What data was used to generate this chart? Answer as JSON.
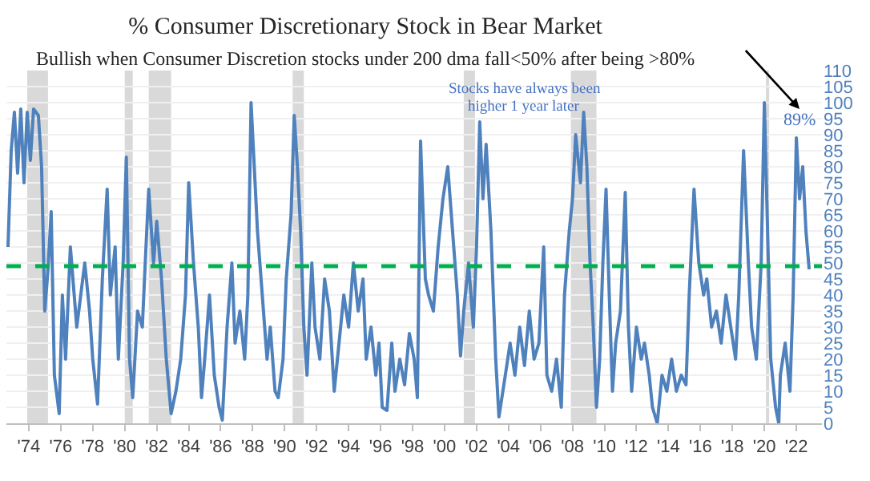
{
  "chart_data": {
    "type": "line",
    "title": "% Consumer Discretionary Stock in Bear Market",
    "subtitle": "Bullish when Consumer Discretion stocks under 200 dma fall<50% after being >80%",
    "annotations": [
      "Stocks have always been",
      "higher 1 year later",
      {
        "text": "89%",
        "x": 2022.2,
        "y": 89
      }
    ],
    "x": [
      1972.7,
      1972.9,
      1973.1,
      1973.3,
      1973.5,
      1973.7,
      1973.9,
      1974.1,
      1974.3,
      1974.6,
      1974.8,
      1975.0,
      1975.2,
      1975.4,
      1975.6,
      1975.9,
      1976.1,
      1976.3,
      1976.6,
      1977.0,
      1977.5,
      1977.8,
      1978.0,
      1978.3,
      1978.6,
      1978.9,
      1979.1,
      1979.4,
      1979.6,
      1979.9,
      1980.1,
      1980.3,
      1980.5,
      1980.8,
      1981.1,
      1981.3,
      1981.5,
      1981.8,
      1982.0,
      1982.3,
      1982.6,
      1982.9,
      1983.2,
      1983.5,
      1983.8,
      1984.0,
      1984.3,
      1984.6,
      1984.8,
      1985.0,
      1985.3,
      1985.6,
      1985.9,
      1986.1,
      1986.4,
      1986.7,
      1986.9,
      1987.2,
      1987.5,
      1987.7,
      1987.9,
      1988.1,
      1988.3,
      1988.6,
      1988.9,
      1989.1,
      1989.4,
      1989.6,
      1989.9,
      1990.1,
      1990.4,
      1990.6,
      1990.8,
      1991.0,
      1991.2,
      1991.4,
      1991.7,
      1991.9,
      1992.2,
      1992.5,
      1992.8,
      1993.1,
      1993.4,
      1993.7,
      1994.0,
      1994.3,
      1994.6,
      1994.9,
      1995.1,
      1995.4,
      1995.7,
      1995.9,
      1996.1,
      1996.4,
      1996.7,
      1996.9,
      1997.2,
      1997.5,
      1997.8,
      1998.1,
      1998.3,
      1998.5,
      1998.8,
      1999.0,
      1999.3,
      1999.6,
      1999.9,
      2000.2,
      2000.5,
      2000.8,
      2001.0,
      2001.2,
      2001.5,
      2001.8,
      2002.0,
      2002.2,
      2002.4,
      2002.6,
      2002.9,
      2003.2,
      2003.4,
      2003.8,
      2004.1,
      2004.4,
      2004.7,
      2005.0,
      2005.3,
      2005.6,
      2005.9,
      2006.2,
      2006.4,
      2006.7,
      2007.0,
      2007.3,
      2007.5,
      2007.8,
      2008.0,
      2008.2,
      2008.5,
      2008.7,
      2008.9,
      2009.1,
      2009.3,
      2009.5,
      2009.7,
      2009.9,
      2010.1,
      2010.3,
      2010.5,
      2010.7,
      2011.0,
      2011.3,
      2011.5,
      2011.7,
      2012.0,
      2012.3,
      2012.5,
      2012.8,
      2013.0,
      2013.3,
      2013.6,
      2013.9,
      2014.2,
      2014.5,
      2014.8,
      2015.1,
      2015.3,
      2015.6,
      2015.9,
      2016.2,
      2016.4,
      2016.7,
      2017.0,
      2017.3,
      2017.6,
      2017.9,
      2018.2,
      2018.4,
      2018.7,
      2019.0,
      2019.2,
      2019.5,
      2019.8,
      2020.0,
      2020.2,
      2020.4,
      2020.7,
      2020.9,
      2021.0,
      2021.3,
      2021.6,
      2021.8,
      2022.0,
      2022.2,
      2022.4,
      2022.6,
      2022.8
    ],
    "series": [
      {
        "color": "#4f81bd",
        "values": [
          55,
          85,
          97,
          78,
          98,
          75,
          97,
          82,
          98,
          96,
          80,
          35,
          48,
          66,
          15,
          3,
          40,
          20,
          55,
          30,
          50,
          35,
          20,
          6,
          45,
          73,
          40,
          55,
          20,
          50,
          83,
          20,
          8,
          35,
          30,
          52,
          73,
          50,
          63,
          45,
          20,
          3,
          10,
          20,
          40,
          75,
          50,
          30,
          8,
          20,
          40,
          15,
          5,
          1,
          30,
          50,
          25,
          35,
          20,
          40,
          100,
          80,
          60,
          40,
          20,
          30,
          10,
          8,
          20,
          45,
          65,
          96,
          80,
          60,
          30,
          15,
          50,
          30,
          20,
          45,
          35,
          10,
          25,
          40,
          30,
          50,
          35,
          45,
          20,
          30,
          15,
          25,
          5,
          4,
          25,
          10,
          20,
          12,
          28,
          20,
          8,
          88,
          45,
          40,
          35,
          55,
          70,
          80,
          60,
          40,
          21,
          35,
          50,
          30,
          55,
          94,
          70,
          87,
          60,
          20,
          2,
          15,
          25,
          15,
          30,
          18,
          35,
          20,
          25,
          55,
          15,
          10,
          20,
          5,
          40,
          60,
          70,
          90,
          75,
          97,
          80,
          50,
          30,
          5,
          20,
          50,
          73,
          40,
          10,
          25,
          35,
          72,
          30,
          10,
          30,
          20,
          25,
          15,
          5,
          0,
          15,
          10,
          20,
          10,
          15,
          12,
          40,
          73,
          50,
          40,
          45,
          30,
          35,
          25,
          40,
          30,
          20,
          40,
          85,
          50,
          30,
          20,
          50,
          100,
          60,
          20,
          5,
          0,
          15,
          25,
          10,
          40,
          89,
          70,
          80,
          60,
          48
        ]
      }
    ],
    "xlim": [
      1972.6,
      2023.6
    ],
    "xticks": [
      {
        "value": 1974,
        "label": "'74"
      },
      {
        "value": 1976,
        "label": "'76"
      },
      {
        "value": 1978,
        "label": "'78"
      },
      {
        "value": 1980,
        "label": "'80"
      },
      {
        "value": 1982,
        "label": "'82"
      },
      {
        "value": 1984,
        "label": "'84"
      },
      {
        "value": 1986,
        "label": "'86"
      },
      {
        "value": 1988,
        "label": "'88"
      },
      {
        "value": 1990,
        "label": "'90"
      },
      {
        "value": 1992,
        "label": "'92"
      },
      {
        "value": 1994,
        "label": "'94"
      },
      {
        "value": 1996,
        "label": "'96"
      },
      {
        "value": 1998,
        "label": "'98"
      },
      {
        "value": 2000,
        "label": "'00"
      },
      {
        "value": 2002,
        "label": "'02"
      },
      {
        "value": 2004,
        "label": "'04"
      },
      {
        "value": 2006,
        "label": "'06"
      },
      {
        "value": 2008,
        "label": "'08"
      },
      {
        "value": 2010,
        "label": "'10"
      },
      {
        "value": 2012,
        "label": "'12"
      },
      {
        "value": 2014,
        "label": "'14"
      },
      {
        "value": 2016,
        "label": "'16"
      },
      {
        "value": 2018,
        "label": "'18"
      },
      {
        "value": 2020,
        "label": "'20"
      },
      {
        "value": 2022,
        "label": "'22"
      }
    ],
    "ylim": [
      0,
      110
    ],
    "yticks": [
      0,
      5,
      10,
      15,
      20,
      25,
      30,
      35,
      40,
      45,
      50,
      55,
      60,
      65,
      70,
      75,
      80,
      85,
      90,
      95,
      100,
      105,
      110
    ],
    "grid": "y",
    "ref_lines": [
      {
        "axis": "y",
        "value": 49,
        "color": "#00b050",
        "line_style": "dashed"
      }
    ],
    "bands": [
      {
        "axis": "x",
        "from": 1973.9,
        "to": 1975.2,
        "color": "#d9d9d9"
      },
      {
        "axis": "x",
        "from": 1980.0,
        "to": 1980.5,
        "color": "#d9d9d9"
      },
      {
        "axis": "x",
        "from": 1981.5,
        "to": 1982.9,
        "color": "#d9d9d9"
      },
      {
        "axis": "x",
        "from": 1990.5,
        "to": 1991.2,
        "color": "#d9d9d9"
      },
      {
        "axis": "x",
        "from": 2001.2,
        "to": 2001.9,
        "color": "#d9d9d9"
      },
      {
        "axis": "x",
        "from": 2007.9,
        "to": 2009.5,
        "color": "#d9d9d9"
      },
      {
        "axis": "x",
        "from": 2020.1,
        "to": 2020.3,
        "color": "#d9d9d9"
      }
    ]
  }
}
